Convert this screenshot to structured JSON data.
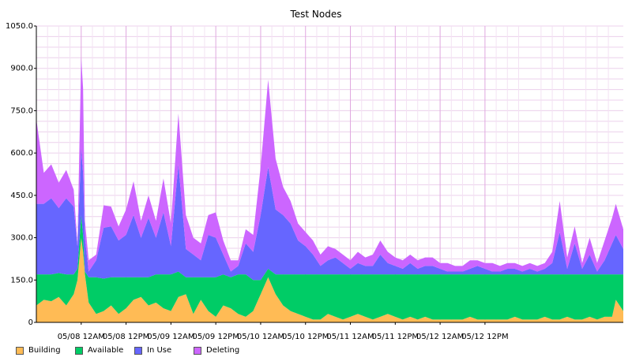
{
  "chart_data": {
    "type": "area",
    "stacked": true,
    "title": "Test Nodes",
    "xlabel": "",
    "ylabel": "",
    "ylim": [
      0,
      1050
    ],
    "y_ticks": [
      "0",
      "150.0",
      "300.0",
      "450.0",
      "600.0",
      "750.0",
      "900.0",
      "1050.0"
    ],
    "x_ticks": [
      "05/08 12AM",
      "05/08 12PM",
      "05/09 12AM",
      "05/09 12PM",
      "05/10 12AM",
      "05/10 12PM",
      "05/11 12AM",
      "05/11 12PM",
      "05/12 12AM",
      "05/12 12PM"
    ],
    "grid": true,
    "legend": "bottom-left",
    "x_hours": [
      -12,
      -10,
      -8,
      -6,
      -4,
      -2,
      -1,
      0,
      0.5,
      1,
      2,
      4,
      6,
      8,
      10,
      12,
      14,
      16,
      18,
      20,
      22,
      24,
      26,
      28,
      30,
      32,
      34,
      36,
      38,
      40,
      42,
      44,
      46,
      48,
      50,
      52,
      54,
      56,
      58,
      60,
      62,
      64,
      66,
      68,
      70,
      72,
      74,
      76,
      78,
      80,
      82,
      84,
      86,
      88,
      90,
      92,
      94,
      96,
      98,
      100,
      102,
      104,
      106,
      108,
      110,
      112,
      114,
      116,
      118,
      120,
      122,
      124,
      126,
      128,
      130,
      132,
      134,
      136,
      138,
      140,
      142,
      143,
      145
    ],
    "series": [
      {
        "name": "Building",
        "color": "#ffbb55",
        "values": [
          60,
          80,
          75,
          90,
          60,
          100,
          150,
          300,
          250,
          170,
          70,
          30,
          40,
          60,
          30,
          50,
          80,
          90,
          60,
          70,
          50,
          40,
          90,
          100,
          30,
          80,
          40,
          20,
          60,
          50,
          30,
          20,
          40,
          100,
          160,
          100,
          60,
          40,
          30,
          20,
          10,
          10,
          30,
          20,
          10,
          20,
          30,
          20,
          10,
          20,
          30,
          20,
          10,
          20,
          10,
          20,
          10,
          10,
          10,
          10,
          10,
          20,
          10,
          10,
          10,
          10,
          10,
          20,
          10,
          10,
          10,
          20,
          10,
          10,
          20,
          10,
          10,
          20,
          10,
          20,
          20,
          80,
          40
        ]
      },
      {
        "name": "Available",
        "color": "#00cc66",
        "values": [
          110,
          90,
          95,
          85,
          110,
          70,
          40,
          80,
          60,
          10,
          90,
          130,
          115,
          100,
          130,
          110,
          80,
          70,
          100,
          100,
          120,
          130,
          90,
          60,
          130,
          80,
          120,
          140,
          110,
          110,
          140,
          150,
          110,
          50,
          30,
          70,
          110,
          130,
          140,
          150,
          160,
          160,
          140,
          150,
          160,
          150,
          140,
          150,
          160,
          150,
          140,
          150,
          160,
          150,
          160,
          150,
          160,
          160,
          160,
          160,
          160,
          150,
          160,
          160,
          160,
          160,
          160,
          150,
          160,
          160,
          160,
          150,
          160,
          160,
          150,
          160,
          160,
          150,
          160,
          150,
          150,
          90,
          130
        ]
      },
      {
        "name": "In Use",
        "color": "#6666ff",
        "values": [
          250,
          250,
          270,
          230,
          270,
          240,
          80,
          240,
          220,
          120,
          20,
          60,
          180,
          180,
          130,
          150,
          220,
          140,
          210,
          130,
          220,
          100,
          380,
          100,
          80,
          60,
          150,
          140,
          70,
          20,
          30,
          110,
          100,
          230,
          360,
          230,
          210,
          180,
          120,
          100,
          70,
          30,
          50,
          60,
          40,
          20,
          40,
          30,
          30,
          70,
          40,
          30,
          20,
          40,
          20,
          30,
          30,
          20,
          10,
          10,
          10,
          20,
          30,
          20,
          10,
          10,
          20,
          20,
          10,
          20,
          10,
          20,
          40,
          150,
          20,
          110,
          20,
          70,
          10,
          50,
          110,
          140,
          90
        ]
      },
      {
        "name": "Deleting",
        "color": "#cc66ff",
        "values": [
          300,
          110,
          120,
          90,
          100,
          60,
          10,
          320,
          300,
          60,
          40,
          20,
          80,
          70,
          50,
          90,
          120,
          60,
          80,
          60,
          120,
          80,
          180,
          120,
          60,
          60,
          70,
          90,
          50,
          40,
          20,
          50,
          60,
          170,
          310,
          180,
          100,
          80,
          60,
          50,
          50,
          40,
          50,
          30,
          30,
          30,
          40,
          30,
          40,
          50,
          40,
          30,
          30,
          30,
          30,
          30,
          30,
          20,
          30,
          20,
          20,
          30,
          20,
          20,
          30,
          20,
          20,
          20,
          20,
          20,
          20,
          20,
          40,
          110,
          40,
          60,
          20,
          60,
          30,
          70,
          90,
          110,
          70
        ]
      }
    ]
  }
}
